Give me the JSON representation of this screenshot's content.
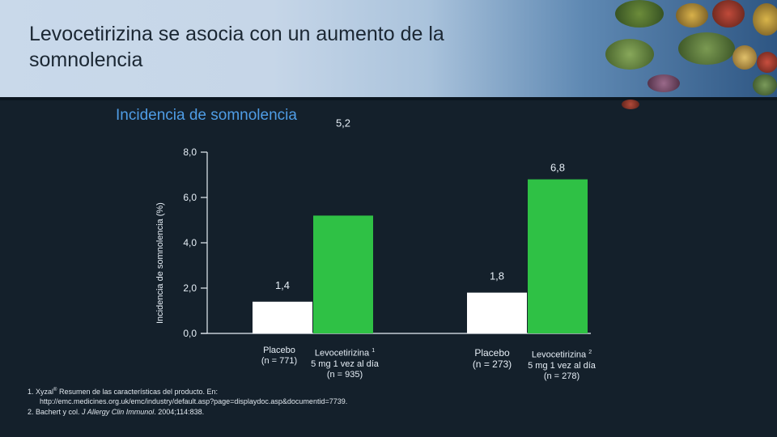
{
  "slide": {
    "title": "Levocetirizina se asocia con un aumento de la somnolencia",
    "subtitle": "Incidencia de somnolencia"
  },
  "chart_data": {
    "type": "bar",
    "title": "Incidencia de somnolencia",
    "ylabel": "Incidencia de somnolencia (%)",
    "xlabel": "",
    "ylim": [
      0,
      8
    ],
    "yticks": [
      "0,0",
      "2,0",
      "4,0",
      "6,0",
      "8,0"
    ],
    "groups": [
      {
        "bars": [
          {
            "name": "placebo-1",
            "value": 1.4,
            "label": "1,4",
            "color": "#ffffff"
          },
          {
            "name": "levocetirizina-1",
            "value": 5.2,
            "label": "5,2",
            "color": "#2fc145"
          }
        ]
      },
      {
        "bars": [
          {
            "name": "placebo-2",
            "value": 1.8,
            "label": "1,8",
            "color": "#ffffff"
          },
          {
            "name": "levocetirizina-2",
            "value": 6.8,
            "label": "6,8",
            "color": "#2fc145"
          }
        ]
      }
    ],
    "categories": {
      "g1_placebo": [
        "Placebo",
        "(n = 771)"
      ],
      "g1_levo": [
        "Levocetirizina",
        "1",
        "5 mg 1 vez al día",
        "(n = 935)"
      ],
      "g2_placebo": [
        "Placebo",
        "(n = 273)"
      ],
      "g2_levo": [
        "Levocetirizina",
        "2",
        "5 mg 1 vez al día",
        "(n = 278)"
      ]
    }
  },
  "footnotes": {
    "ref1_prefix": "1. Xyzal",
    "ref1_sup": "®",
    "ref1_rest": " Resumen de las características del producto. En:",
    "ref1_url": "http://emc.medicines.org.uk/emc/industry/default.asp?page=displaydoc.asp&documentid=7739.",
    "ref2_prefix": "2. Bachert y col. ",
    "ref2_journal": "J Allergy Clin Immunol",
    "ref2_rest": ". 2004;114:838."
  }
}
